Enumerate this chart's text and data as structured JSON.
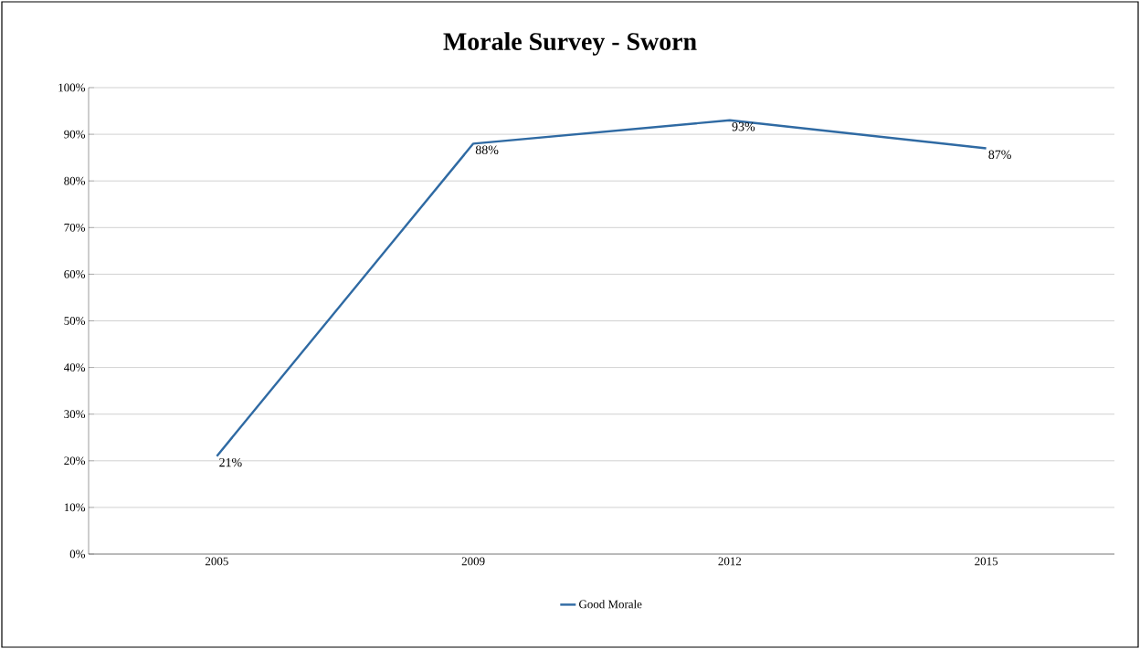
{
  "chart_data": {
    "type": "line",
    "title": "Morale Survey - Sworn",
    "categories": [
      "2005",
      "2009",
      "2012",
      "2015"
    ],
    "series": [
      {
        "name": "Good Morale",
        "color": "#2f6aa3",
        "values": [
          21,
          88,
          93,
          87
        ],
        "value_labels": [
          "21%",
          "88%",
          "93%",
          "87%"
        ]
      }
    ],
    "ylim": [
      0,
      100
    ],
    "yticks": [
      {
        "value": 0,
        "label": "0%"
      },
      {
        "value": 10,
        "label": "10%"
      },
      {
        "value": 20,
        "label": "20%"
      },
      {
        "value": 30,
        "label": "30%"
      },
      {
        "value": 40,
        "label": "40%"
      },
      {
        "value": 50,
        "label": "50%"
      },
      {
        "value": 60,
        "label": "60%"
      },
      {
        "value": 70,
        "label": "70%"
      },
      {
        "value": 80,
        "label": "80%"
      },
      {
        "value": 90,
        "label": "90%"
      },
      {
        "value": 100,
        "label": "100%"
      }
    ],
    "grid": "y",
    "legend": "bottom",
    "marker": "none",
    "line_style": "solid"
  }
}
